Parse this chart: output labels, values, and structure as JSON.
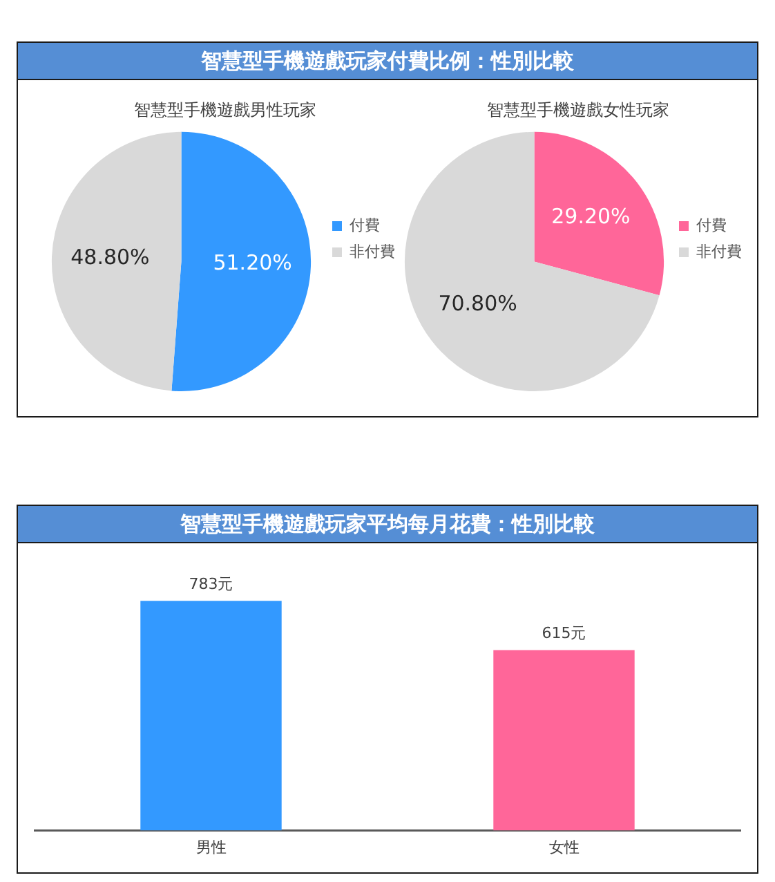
{
  "chart_data": [
    {
      "type": "other",
      "title": "智慧型手機遊戲玩家付費比例：性別比較"
    },
    {
      "type": "pie",
      "title": "智慧型手機遊戲男性玩家",
      "categories": [
        "付費",
        "非付費"
      ],
      "values": [
        51.2,
        48.8
      ],
      "colors": [
        "#3399ff",
        "#d9d9d9"
      ],
      "value_labels": [
        "51.20%",
        "48.80%"
      ],
      "legend": "right"
    },
    {
      "type": "pie",
      "title": "智慧型手機遊戲女性玩家",
      "categories": [
        "付費",
        "非付費"
      ],
      "values": [
        29.2,
        70.8
      ],
      "colors": [
        "#ff6699",
        "#d9d9d9"
      ],
      "value_labels": [
        "29.20%",
        "70.80%"
      ],
      "legend": "right"
    },
    {
      "type": "bar",
      "title": "智慧型手機遊戲玩家平均每月花費：性別比較",
      "categories": [
        "男性",
        "女性"
      ],
      "values": [
        783,
        615
      ],
      "colors": [
        "#3399ff",
        "#ff6699"
      ],
      "value_labels": [
        "783元",
        "615元"
      ],
      "tick_labels": "x"
    }
  ]
}
